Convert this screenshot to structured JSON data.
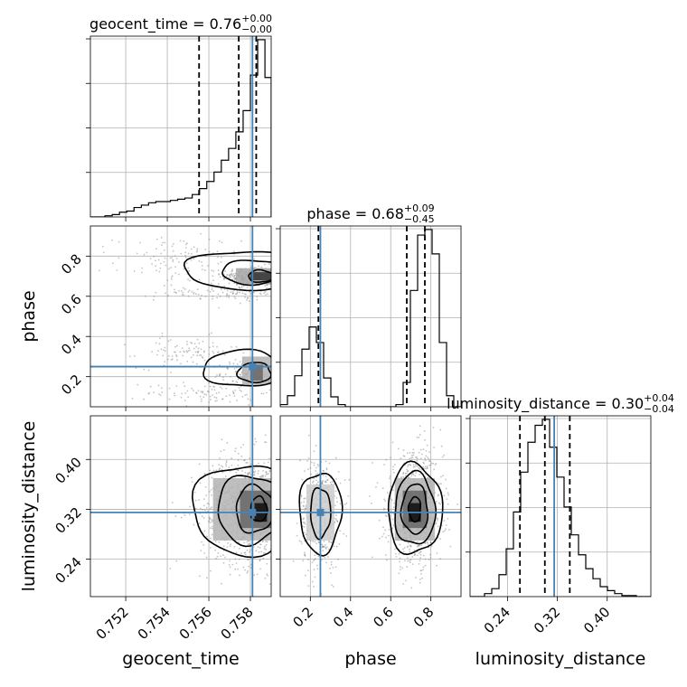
{
  "chart_data": {
    "type": "corner",
    "parameters": [
      "geocent_time",
      "phase",
      "luminosity_distance"
    ],
    "colors": {
      "truth": "#4682b4",
      "hist": "#000000",
      "grid": "#b0b0b0"
    },
    "truths": {
      "geocent_time": 0.7581,
      "phase": 0.25,
      "luminosity_distance": 0.315
    },
    "titles": {
      "geocent_time": {
        "prefix": "geocent_time = ",
        "value": "0.76",
        "upper": "+0.00",
        "lower": "−0.00"
      },
      "phase": {
        "prefix": "phase = ",
        "value": "0.68",
        "upper": "+0.09",
        "lower": "−0.45"
      },
      "luminosity_distance": {
        "prefix": "luminosity_distance = ",
        "value": "0.30",
        "upper": "+0.04",
        "lower": "−0.04"
      }
    },
    "ranges": {
      "geocent_time": [
        0.7503,
        0.759
      ],
      "phase": [
        0.05,
        0.95
      ],
      "luminosity_distance": [
        0.18,
        0.47
      ]
    },
    "ticks": {
      "geocent_time": {
        "values": [
          0.752,
          0.754,
          0.756,
          0.758
        ],
        "labels": [
          "0.752",
          "0.754",
          "0.756",
          "0.758"
        ]
      },
      "phase": {
        "values": [
          0.2,
          0.4,
          0.6,
          0.8
        ],
        "labels": [
          "0.2",
          "0.4",
          "0.6",
          "0.8"
        ]
      },
      "luminosity_distance": {
        "values": [
          0.24,
          0.32,
          0.4
        ],
        "labels": [
          "0.24",
          "0.32",
          "0.40"
        ]
      }
    },
    "histograms": {
      "geocent_time": {
        "edges": [
          0.7503,
          0.75065,
          0.751,
          0.75135,
          0.7517,
          0.75205,
          0.7524,
          0.75275,
          0.7531,
          0.75345,
          0.7538,
          0.75415,
          0.7545,
          0.75485,
          0.7552,
          0.75555,
          0.7559,
          0.75625,
          0.7566,
          0.75695,
          0.7573,
          0.75765,
          0.758,
          0.75835,
          0.7587,
          0.759
        ],
        "counts": [
          0,
          0,
          1,
          2,
          4,
          5,
          8,
          10,
          12,
          13,
          13,
          14,
          15,
          16,
          19,
          24,
          30,
          38,
          48,
          58,
          72,
          90,
          120,
          150,
          118,
          0
        ],
        "quantiles": [
          0.75553,
          0.75744,
          0.75828
        ]
      },
      "phase": {
        "edges": [
          0.05,
          0.086,
          0.122,
          0.158,
          0.194,
          0.23,
          0.266,
          0.302,
          0.338,
          0.374,
          0.41,
          0.446,
          0.482,
          0.518,
          0.554,
          0.59,
          0.626,
          0.662,
          0.698,
          0.734,
          0.77,
          0.806,
          0.842,
          0.878,
          0.914,
          0.95
        ],
        "counts": [
          2,
          10,
          28,
          52,
          72,
          58,
          26,
          9,
          2,
          0,
          0,
          0,
          0,
          0,
          0,
          0,
          2,
          22,
          105,
          155,
          160,
          138,
          58,
          10,
          0
        ],
        "quantiles": [
          0.24,
          0.68,
          0.77
        ]
      },
      "luminosity_distance": {
        "edges": [
          0.18,
          0.1916,
          0.2032,
          0.2148,
          0.2264,
          0.238,
          0.2496,
          0.2612,
          0.2728,
          0.2844,
          0.296,
          0.3076,
          0.3192,
          0.3308,
          0.3424,
          0.354,
          0.3656,
          0.3772,
          0.3888,
          0.4004,
          0.412,
          0.4236,
          0.4352,
          0.4468,
          0.4584,
          0.47
        ],
        "counts": [
          0,
          0,
          3,
          8,
          22,
          48,
          85,
          125,
          155,
          172,
          178,
          150,
          120,
          90,
          62,
          42,
          28,
          18,
          10,
          6,
          3,
          1,
          1,
          0,
          0
        ],
        "quantiles": [
          0.26,
          0.3,
          0.34
        ]
      }
    },
    "samples": [
      {
        "x": "geocent_time",
        "y": "phase",
        "cx": 0.7582,
        "cy": 0.7,
        "sx": 0.0008,
        "sy": 0.025,
        "n": 320
      },
      {
        "x": "geocent_time",
        "y": "phase",
        "cx": 0.7582,
        "cy": 0.22,
        "sx": 0.0008,
        "sy": 0.03,
        "n": 180
      },
      {
        "x": "geocent_time",
        "y": "phase",
        "cx": 0.7575,
        "cy": 0.62,
        "sx": 0.002,
        "sy": 0.02,
        "n": 130
      },
      {
        "x": "geocent_time",
        "y": "phase",
        "cx": 0.7545,
        "cy": 0.78,
        "sx": 0.0015,
        "sy": 0.06,
        "n": 110
      },
      {
        "x": "geocent_time",
        "y": "phase",
        "cx": 0.755,
        "cy": 0.32,
        "sx": 0.0012,
        "sy": 0.04,
        "n": 100
      },
      {
        "x": "geocent_time",
        "y": "phase",
        "cx": 0.756,
        "cy": 0.12,
        "sx": 0.0015,
        "sy": 0.03,
        "n": 90
      },
      {
        "x": "geocent_time",
        "y": "luminosity_distance",
        "cx": 0.758,
        "cy": 0.32,
        "sx": 0.0012,
        "sy": 0.045,
        "n": 900
      },
      {
        "x": "phase",
        "y": "luminosity_distance",
        "cx": 0.25,
        "cy": 0.315,
        "sx": 0.05,
        "sy": 0.045,
        "n": 450
      },
      {
        "x": "phase",
        "y": "luminosity_distance",
        "cx": 0.72,
        "cy": 0.32,
        "sx": 0.07,
        "sy": 0.045,
        "n": 800
      }
    ],
    "density_blocks": [
      {
        "x": "geocent_time",
        "y": "phase",
        "x0": 0.7573,
        "x1": 0.759,
        "y0": 0.66,
        "y1": 0.74,
        "shade": 0.35
      },
      {
        "x": "geocent_time",
        "y": "phase",
        "x0": 0.758,
        "x1": 0.759,
        "y0": 0.68,
        "y1": 0.72,
        "shade": 0.8
      },
      {
        "x": "geocent_time",
        "y": "phase",
        "x0": 0.7576,
        "x1": 0.759,
        "y0": 0.16,
        "y1": 0.3,
        "shade": 0.3
      },
      {
        "x": "geocent_time",
        "y": "phase",
        "x0": 0.758,
        "x1": 0.7586,
        "y0": 0.18,
        "y1": 0.26,
        "shade": 0.6
      },
      {
        "x": "geocent_time",
        "y": "luminosity_distance",
        "x0": 0.7562,
        "x1": 0.759,
        "y0": 0.27,
        "y1": 0.37,
        "shade": 0.3
      },
      {
        "x": "geocent_time",
        "y": "luminosity_distance",
        "x0": 0.7575,
        "x1": 0.759,
        "y0": 0.29,
        "y1": 0.35,
        "shade": 0.6
      },
      {
        "x": "geocent_time",
        "y": "luminosity_distance",
        "x0": 0.7582,
        "x1": 0.7588,
        "y0": 0.3,
        "y1": 0.33,
        "shade": 0.95
      },
      {
        "x": "phase",
        "y": "luminosity_distance",
        "x0": 0.18,
        "x1": 0.32,
        "y0": 0.27,
        "y1": 0.36,
        "shade": 0.2
      },
      {
        "x": "phase",
        "y": "luminosity_distance",
        "x0": 0.62,
        "x1": 0.82,
        "y0": 0.27,
        "y1": 0.37,
        "shade": 0.3
      },
      {
        "x": "phase",
        "y": "luminosity_distance",
        "x0": 0.66,
        "x1": 0.78,
        "y0": 0.29,
        "y1": 0.35,
        "shade": 0.6
      },
      {
        "x": "phase",
        "y": "luminosity_distance",
        "x0": 0.69,
        "x1": 0.75,
        "y0": 0.3,
        "y1": 0.33,
        "shade": 0.95
      }
    ],
    "contours": [
      {
        "x": "geocent_time",
        "y": "phase",
        "cx": 0.7578,
        "cy": 0.73,
        "rx": 0.003,
        "ry": 0.095
      },
      {
        "x": "geocent_time",
        "y": "phase",
        "cx": 0.7582,
        "cy": 0.72,
        "rx": 0.0016,
        "ry": 0.06
      },
      {
        "x": "geocent_time",
        "y": "phase",
        "cx": 0.7585,
        "cy": 0.7,
        "rx": 0.0006,
        "ry": 0.03
      },
      {
        "x": "geocent_time",
        "y": "phase",
        "cx": 0.7577,
        "cy": 0.24,
        "rx": 0.002,
        "ry": 0.09
      },
      {
        "x": "geocent_time",
        "y": "phase",
        "cx": 0.7582,
        "cy": 0.22,
        "rx": 0.0008,
        "ry": 0.05
      },
      {
        "x": "geocent_time",
        "y": "luminosity_distance",
        "cx": 0.7578,
        "cy": 0.32,
        "rx": 0.0026,
        "ry": 0.072
      },
      {
        "x": "geocent_time",
        "y": "luminosity_distance",
        "cx": 0.758,
        "cy": 0.32,
        "rx": 0.0016,
        "ry": 0.055
      },
      {
        "x": "geocent_time",
        "y": "luminosity_distance",
        "cx": 0.7582,
        "cy": 0.32,
        "rx": 0.0009,
        "ry": 0.038
      },
      {
        "x": "geocent_time",
        "y": "luminosity_distance",
        "cx": 0.7584,
        "cy": 0.32,
        "rx": 0.0004,
        "ry": 0.02
      },
      {
        "x": "phase",
        "y": "luminosity_distance",
        "cx": 0.25,
        "cy": 0.315,
        "rx": 0.105,
        "ry": 0.065
      },
      {
        "x": "phase",
        "y": "luminosity_distance",
        "cx": 0.25,
        "cy": 0.315,
        "rx": 0.05,
        "ry": 0.04
      },
      {
        "x": "phase",
        "y": "luminosity_distance",
        "cx": 0.72,
        "cy": 0.32,
        "rx": 0.135,
        "ry": 0.072
      },
      {
        "x": "phase",
        "y": "luminosity_distance",
        "cx": 0.72,
        "cy": 0.32,
        "rx": 0.1,
        "ry": 0.058
      },
      {
        "x": "phase",
        "y": "luminosity_distance",
        "cx": 0.72,
        "cy": 0.32,
        "rx": 0.065,
        "ry": 0.04
      },
      {
        "x": "phase",
        "y": "luminosity_distance",
        "cx": 0.72,
        "cy": 0.32,
        "rx": 0.03,
        "ry": 0.02
      }
    ]
  }
}
